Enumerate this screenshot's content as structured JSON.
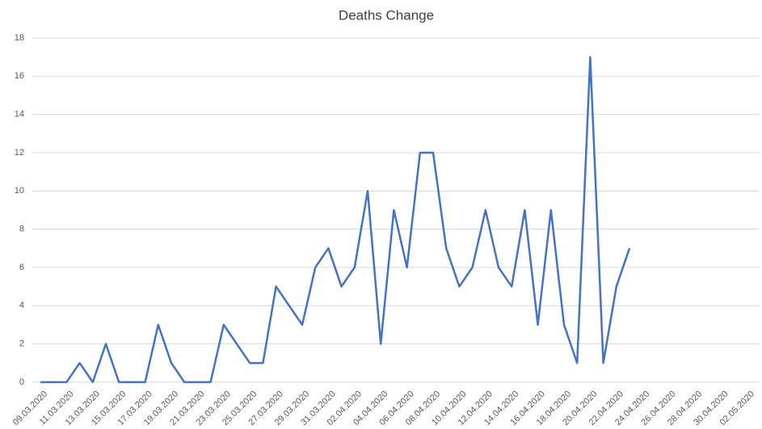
{
  "chart_data": {
    "type": "line",
    "title": "Deaths Change",
    "categories": [
      "09.03.2020",
      null,
      "11.03.2020",
      null,
      "13.03.2020",
      null,
      "15.03.2020",
      null,
      "17.03.2020",
      null,
      "19.03.2020",
      null,
      "21.03.2020",
      null,
      "23.03.2020",
      null,
      "25.03.2020",
      null,
      "27.03.2020",
      null,
      "29.03.2020",
      null,
      "31.03.2020",
      null,
      "02.04.2020",
      null,
      "04.04.2020",
      null,
      "06.04.2020",
      null,
      "08.04.2020",
      null,
      "10.04.2020",
      null,
      "12.04.2020",
      null,
      "14.04.2020",
      null,
      "16.04.2020",
      null,
      "18.04.2020",
      null,
      "20.04.2020",
      null,
      "22.04.2020",
      null,
      "24.04.2020",
      null,
      "26.04.2020",
      null,
      "28.04.2020",
      null,
      "30.04.2020",
      null,
      "02.05.2020"
    ],
    "values": [
      0,
      0,
      0,
      1,
      0,
      2,
      0,
      0,
      0,
      3,
      1,
      0,
      0,
      0,
      3,
      2,
      1,
      1,
      5,
      4,
      3,
      6,
      7,
      5,
      6,
      10,
      2,
      9,
      6,
      12,
      12,
      7,
      5,
      6,
      9,
      6,
      5,
      9,
      3,
      9,
      3,
      1,
      17,
      1,
      5,
      7,
      null,
      null,
      null,
      null,
      null,
      null,
      null,
      null,
      null
    ],
    "color": "#4472c4",
    "ylim": [
      0,
      18
    ],
    "yticks": [
      0,
      2,
      4,
      6,
      8,
      10,
      12,
      14,
      16,
      18
    ],
    "grid": true
  }
}
